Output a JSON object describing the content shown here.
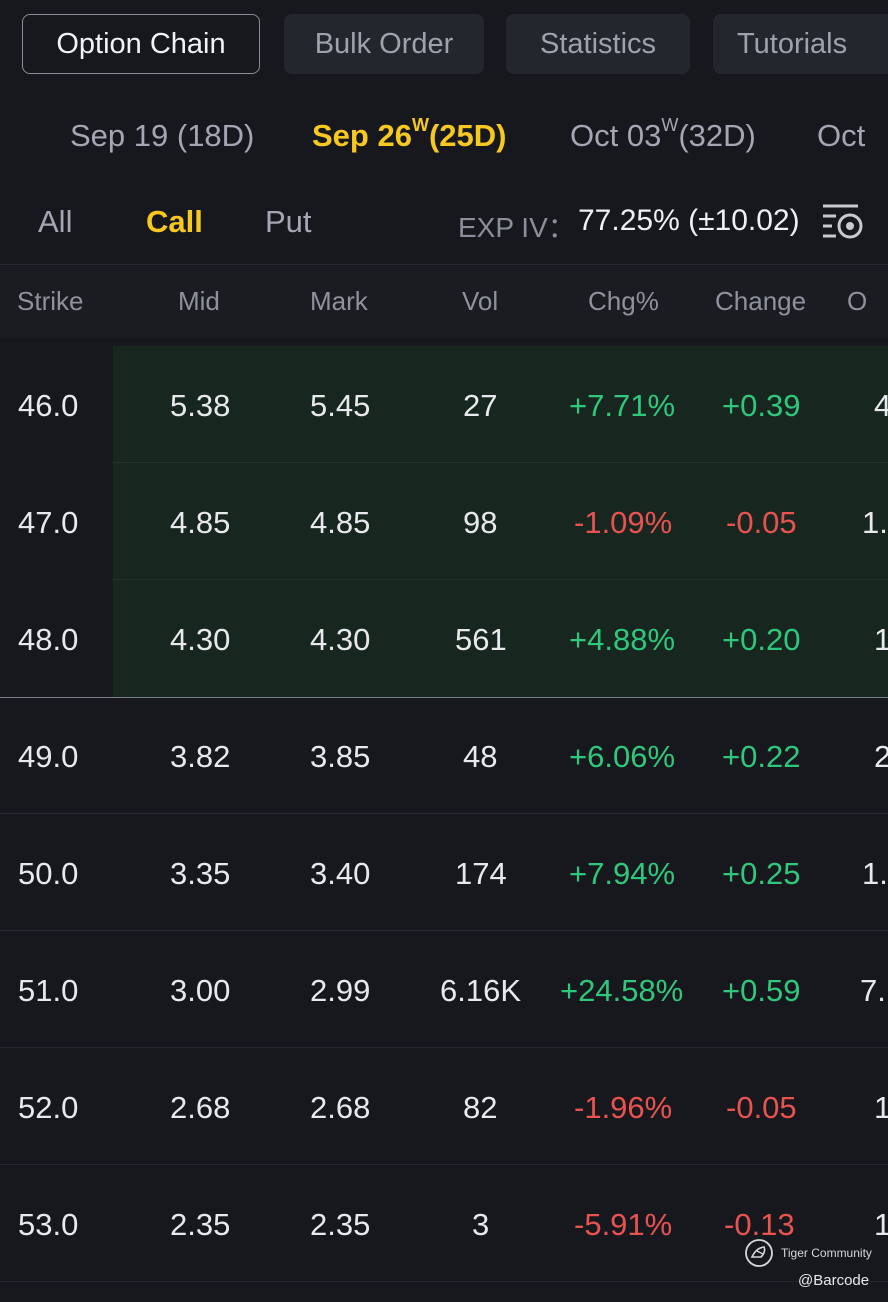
{
  "top_tabs": [
    "Option Chain",
    "Bulk Order",
    "Statistics",
    "Tutorials"
  ],
  "expirations": [
    {
      "label": "Sep 19 (18D)",
      "weekly": "",
      "days": ""
    },
    {
      "label": "Sep 26",
      "weekly": "W",
      "days": "(25D)"
    },
    {
      "label": "Oct 03",
      "weekly": "W",
      "days": "(32D)"
    },
    {
      "label": "Oct",
      "weekly": "",
      "days": ""
    }
  ],
  "filters": {
    "all": "All",
    "call": "Call",
    "put": "Put"
  },
  "exp_iv": {
    "label": "EXP IV：",
    "value": "77.25% (±10.02)"
  },
  "settings_icon": "option-settings-icon",
  "columns": [
    "Strike",
    "Mid",
    "Mark",
    "Vol",
    "Chg%",
    "Change",
    "O"
  ],
  "rows": [
    {
      "strike": "46.0",
      "mid": "5.38",
      "mark": "5.45",
      "vol": "27",
      "chg_pct": "+7.71%",
      "change": "+0.39",
      "oi": "4"
    },
    {
      "strike": "47.0",
      "mid": "4.85",
      "mark": "4.85",
      "vol": "98",
      "chg_pct": "-1.09%",
      "change": "-0.05",
      "oi": "1."
    },
    {
      "strike": "48.0",
      "mid": "4.30",
      "mark": "4.30",
      "vol": "561",
      "chg_pct": "+4.88%",
      "change": "+0.20",
      "oi": "1"
    },
    {
      "strike": "49.0",
      "mid": "3.82",
      "mark": "3.85",
      "vol": "48",
      "chg_pct": "+6.06%",
      "change": "+0.22",
      "oi": "2"
    },
    {
      "strike": "50.0",
      "mid": "3.35",
      "mark": "3.40",
      "vol": "174",
      "chg_pct": "+7.94%",
      "change": "+0.25",
      "oi": "1."
    },
    {
      "strike": "51.0",
      "mid": "3.00",
      "mark": "2.99",
      "vol": "6.16K",
      "chg_pct": "+24.58%",
      "change": "+0.59",
      "oi": "7."
    },
    {
      "strike": "52.0",
      "mid": "2.68",
      "mark": "2.68",
      "vol": "82",
      "chg_pct": "-1.96%",
      "change": "-0.05",
      "oi": "1"
    },
    {
      "strike": "53.0",
      "mid": "2.35",
      "mark": "2.35",
      "vol": "3",
      "chg_pct": "-5.91%",
      "change": "-0.13",
      "oi": "1"
    }
  ],
  "watermark": {
    "brand": "Tiger Community",
    "handle": "@Barcode"
  },
  "colors": {
    "up": "#2fc77c",
    "down": "#e8524f",
    "accent": "#f7c81f",
    "background": "#17181d",
    "itm_background": "#17261f"
  }
}
